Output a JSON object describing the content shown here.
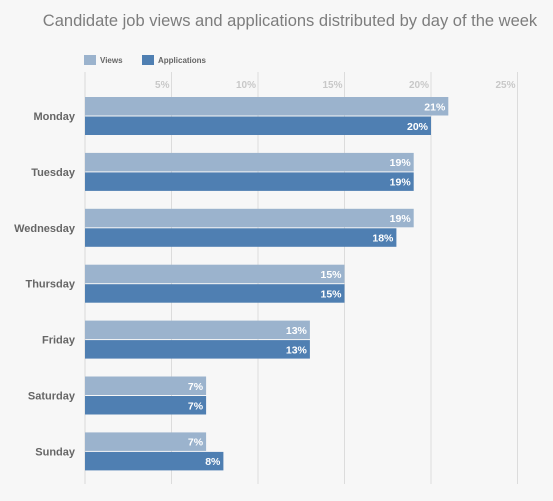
{
  "chart_data": {
    "type": "bar",
    "orientation": "horizontal",
    "title": "Candidate job views and applications distributed by day of the week",
    "categories": [
      "Monday",
      "Tuesday",
      "Wednesday",
      "Thursday",
      "Friday",
      "Saturday",
      "Sunday"
    ],
    "series": [
      {
        "name": "Views",
        "color": "#9bb3cd",
        "values": [
          21,
          19,
          19,
          15,
          13,
          7,
          7
        ]
      },
      {
        "name": "Applications",
        "color": "#4f7fb2",
        "values": [
          20,
          19,
          18,
          15,
          13,
          7,
          8
        ]
      }
    ],
    "value_suffix": "%",
    "xlim": [
      0,
      25
    ],
    "xticks": [
      5,
      10,
      15,
      20,
      25
    ],
    "tick_suffix": "%",
    "grid": true,
    "legend_position": "top-left"
  }
}
